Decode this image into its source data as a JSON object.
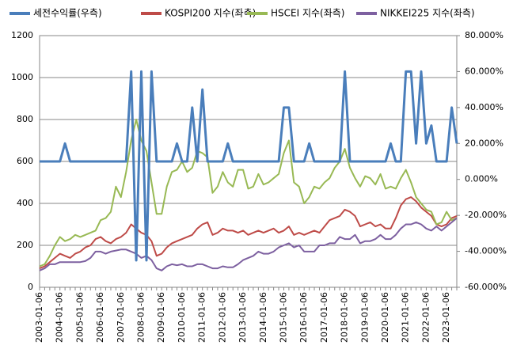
{
  "chart_data": {
    "type": "line",
    "categories": [
      "2003-01-06",
      null,
      null,
      null,
      "2004-01-06",
      null,
      null,
      null,
      "2005-01-06",
      null,
      null,
      null,
      "2006-01-06",
      null,
      null,
      null,
      "2007-01-06",
      null,
      null,
      null,
      "2008-01-06",
      null,
      null,
      null,
      "2009-01-06",
      null,
      null,
      null,
      "2010-01-06",
      null,
      null,
      null,
      "2011-01-06",
      null,
      null,
      null,
      "2012-01-06",
      null,
      null,
      null,
      "2013-01-06",
      null,
      null,
      null,
      "2014-01-06",
      null,
      null,
      null,
      "2015-01-06",
      null,
      null,
      null,
      "2016-01-06",
      null,
      null,
      null,
      "2017-01-06",
      null,
      null,
      null,
      "2018-01-06",
      null,
      null,
      null,
      "2019-01-06",
      null,
      null,
      null,
      "2020-01-06",
      null,
      null,
      null,
      "2021-01-06",
      null,
      null,
      null,
      "2022-01-06",
      null,
      null,
      null,
      "2023-01-06",
      null,
      null
    ],
    "series": [
      {
        "name": "세전수익률(우측)",
        "color": "#4a7ebb",
        "axis": "y2",
        "values": [
          10,
          10,
          10,
          10,
          10,
          20,
          10,
          10,
          10,
          10,
          10,
          10,
          10,
          10,
          10,
          10,
          10,
          10,
          60,
          -45,
          60,
          -45,
          60,
          10,
          10,
          10,
          10,
          20,
          10,
          10,
          40,
          10,
          50,
          10,
          10,
          10,
          10,
          20,
          10,
          10,
          10,
          10,
          10,
          10,
          10,
          10,
          10,
          10,
          40,
          40,
          10,
          10,
          10,
          20,
          10,
          10,
          10,
          10,
          10,
          10,
          60,
          10,
          10,
          10,
          10,
          10,
          10,
          10,
          10,
          20,
          10,
          10,
          60,
          60,
          20,
          60,
          20,
          30,
          10,
          10,
          10,
          40,
          20
        ]
      },
      {
        "name": "KOSPI200 지수(좌측)",
        "color": "#be4b48",
        "values": [
          90,
          100,
          120,
          140,
          160,
          150,
          140,
          160,
          170,
          190,
          200,
          230,
          240,
          220,
          210,
          230,
          240,
          260,
          300,
          280,
          260,
          250,
          220,
          150,
          160,
          190,
          210,
          220,
          230,
          240,
          250,
          280,
          300,
          310,
          250,
          260,
          280,
          270,
          270,
          260,
          270,
          250,
          260,
          270,
          260,
          270,
          280,
          260,
          270,
          290,
          250,
          260,
          250,
          260,
          270,
          260,
          290,
          320,
          330,
          340,
          370,
          360,
          340,
          290,
          300,
          310,
          290,
          300,
          280,
          280,
          330,
          390,
          420,
          430,
          410,
          380,
          360,
          340,
          300,
          290,
          300,
          330,
          340
        ]
      },
      {
        "name": "HSCEI 지수(좌측)",
        "color": "#98b954",
        "values": [
          100,
          110,
          150,
          200,
          240,
          220,
          230,
          250,
          240,
          250,
          260,
          270,
          320,
          330,
          360,
          480,
          430,
          550,
          700,
          800,
          700,
          650,
          500,
          350,
          350,
          480,
          550,
          560,
          600,
          550,
          570,
          650,
          640,
          620,
          450,
          480,
          550,
          500,
          480,
          560,
          560,
          470,
          480,
          540,
          490,
          500,
          520,
          540,
          640,
          700,
          500,
          480,
          400,
          430,
          480,
          470,
          500,
          520,
          570,
          600,
          660,
          570,
          520,
          480,
          530,
          520,
          490,
          540,
          470,
          480,
          470,
          520,
          560,
          500,
          430,
          400,
          370,
          360,
          300,
          310,
          360,
          320,
          330
        ]
      },
      {
        "name": "NIKKEI225 지수(좌측)",
        "color": "#7d60a0",
        "values": [
          80,
          90,
          110,
          110,
          120,
          120,
          120,
          120,
          120,
          125,
          140,
          170,
          170,
          160,
          170,
          175,
          180,
          180,
          170,
          160,
          140,
          150,
          130,
          90,
          80,
          100,
          110,
          105,
          110,
          100,
          100,
          110,
          110,
          100,
          90,
          90,
          100,
          95,
          95,
          110,
          130,
          140,
          150,
          170,
          160,
          160,
          170,
          190,
          200,
          210,
          190,
          200,
          170,
          170,
          170,
          200,
          200,
          210,
          210,
          240,
          230,
          230,
          250,
          210,
          220,
          220,
          230,
          250,
          230,
          230,
          250,
          280,
          300,
          300,
          310,
          300,
          280,
          270,
          290,
          270,
          290,
          310,
          330
        ]
      }
    ],
    "ylim": [
      0,
      1200
    ],
    "yticks": [
      0,
      200,
      400,
      600,
      800,
      1000,
      1200
    ],
    "y2lim": [
      -60,
      80
    ],
    "y2ticks": [
      {
        "value": -60,
        "label": "-60.000%"
      },
      {
        "value": -40,
        "label": "-40.000%"
      },
      {
        "value": -20,
        "label": "-20.000%"
      },
      {
        "value": 0,
        "label": "0.000%"
      },
      {
        "value": 20,
        "label": "20.000%"
      },
      {
        "value": 40,
        "label": "40.000%"
      },
      {
        "value": 60,
        "label": "60.000%"
      },
      {
        "value": 80,
        "label": "80.000%"
      }
    ],
    "grid": true,
    "legend": "top"
  }
}
